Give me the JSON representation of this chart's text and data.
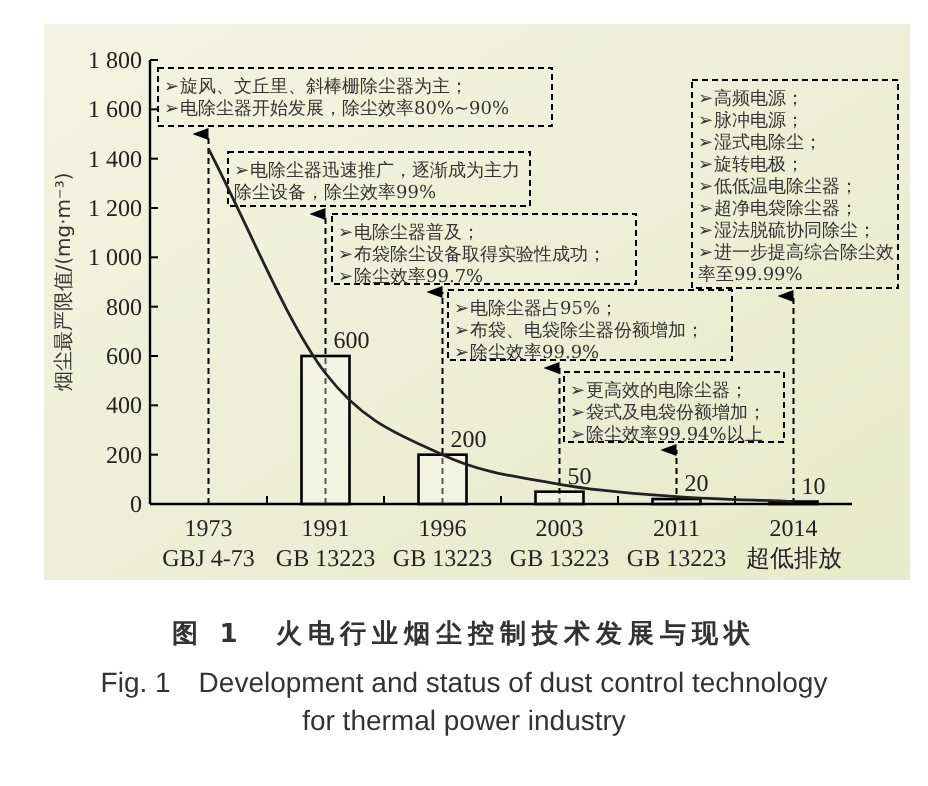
{
  "chart_data": {
    "type": "bar",
    "title": "图 1　火电行业烟尘控制技术发展与现状",
    "subtitle": "Fig. 1　Development and status of dust control technology for thermal power industry",
    "ylabel": "烟尘最严限值/(mg·m⁻³)",
    "categories": [
      "1973\nGBJ 4-73",
      "1991\nGB 13223",
      "1996\nGB 13223",
      "2003\nGB 13223",
      "2011\nGB 13223",
      "2014\n超低排放"
    ],
    "series": [
      {
        "color": "#ffffff",
        "values": [
          null,
          600,
          200,
          50,
          20,
          10
        ],
        "value_labels": [
          null,
          "600",
          "200",
          "50",
          "20",
          "10"
        ]
      },
      {
        "type": "line",
        "color": "#222222",
        "values": [
          1440,
          530,
          200,
          80,
          30,
          10
        ]
      }
    ],
    "ylim": [
      0,
      1800
    ],
    "yticks": [
      0,
      200,
      400,
      600,
      800,
      {
        "value": 1000,
        "label": "1 000"
      },
      {
        "value": 1200,
        "label": "1 200"
      },
      {
        "value": 1400,
        "label": "1 400"
      },
      {
        "value": 1600,
        "label": "1 600"
      },
      {
        "value": 1800,
        "label": "1 800"
      }
    ],
    "annotations": [
      "➢旋风、文丘里、斜棒栅除尘器为主；\n➢电除尘器开始发展，除尘效率80%~90%",
      "➢电除尘器迅速推广，逐渐成为主力除尘设备，除尘效率99%",
      "➢电除尘器普及；\n➢布袋除尘设备取得实验性成功；\n➢除尘效率99.7%",
      "➢电除尘器占95%；\n➢布袋、电袋除尘器份额增加；\n➢除尘效率99.9%",
      "➢更高效的电除尘器；\n➢袋式及电袋份额增加；\n➢除尘效率99.94%以上",
      "➢高频电源；\n➢脉冲电源；\n➢湿式电除尘；\n➢旋转电极；\n➢低低温电除尘器；\n➢超净电袋除尘器；\n➢湿法脱硫协同除尘；\n➢进一步提高综合除尘效率至99.99%"
    ]
  }
}
